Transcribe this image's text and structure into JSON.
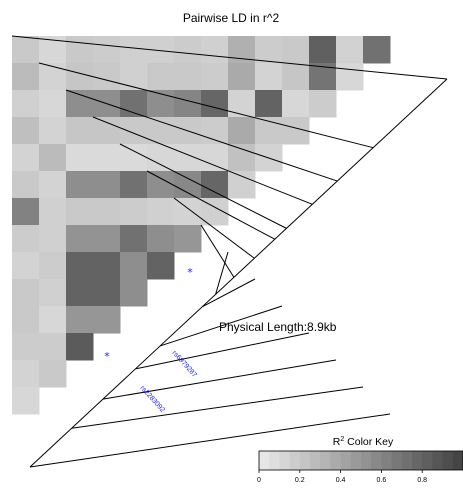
{
  "chart_data": {
    "type": "heatmap",
    "title": "Pairwise LD in r^2",
    "annotation": "Physical Length:8.9kb",
    "snp_labels": [
      "rs6979287",
      "rs2283092"
    ],
    "color_key": {
      "title_prefix": "R",
      "title_sup": "2",
      "title_suffix": " Color Key",
      "range": [
        0,
        1
      ],
      "ticks": [
        0,
        0.2,
        0.4,
        0.6,
        0.8
      ],
      "tick_labels": [
        "0",
        "0.2",
        "0.4",
        "0.6",
        "0.8"
      ],
      "colormap": "grey-scale, light grey (low r^2) to dark grey (high r^2)",
      "n_bins": 20
    },
    "n_snps": 15,
    "r2_matrix_rows": [
      [
        0.2,
        0.12,
        0.2,
        0.18,
        0.16,
        0.16,
        0.18,
        0.16,
        0.35,
        0.18,
        0.2,
        0.82,
        0.15,
        0.72
      ],
      [
        0.28,
        0.14,
        0.22,
        0.2,
        0.16,
        0.2,
        0.2,
        0.18,
        0.38,
        0.14,
        0.22,
        0.7,
        0.12
      ],
      [
        0.16,
        0.12,
        0.55,
        0.55,
        0.72,
        0.55,
        0.6,
        0.78,
        0.14,
        0.8,
        0.12,
        0.18
      ],
      [
        0.26,
        0.14,
        0.22,
        0.22,
        0.2,
        0.2,
        0.2,
        0.18,
        0.38,
        0.2,
        0.2
      ],
      [
        0.14,
        0.28,
        0.1,
        0.1,
        0.1,
        0.12,
        0.12,
        0.12,
        0.25,
        0.14
      ],
      [
        0.2,
        0.14,
        0.55,
        0.55,
        0.72,
        0.55,
        0.58,
        0.78,
        0.16
      ],
      [
        0.62,
        0.16,
        0.2,
        0.2,
        0.18,
        0.16,
        0.14,
        0.16
      ],
      [
        0.18,
        0.16,
        0.52,
        0.52,
        0.72,
        0.55,
        0.5
      ],
      [
        0.14,
        0.18,
        0.8,
        0.8,
        0.55,
        0.8
      ],
      [
        0.2,
        0.16,
        0.8,
        0.8,
        0.55
      ],
      [
        0.2,
        0.12,
        0.5,
        0.5
      ],
      [
        0.18,
        0.18,
        0.85
      ],
      [
        0.14,
        0.2
      ],
      [
        0.12
      ]
    ],
    "snp_relative_positions": [
      0.0,
      0.1,
      0.175,
      0.253,
      0.312,
      0.413,
      0.445,
      0.489,
      0.538,
      0.587,
      0.615,
      0.677,
      0.737,
      0.823,
      1.0
    ],
    "marked_pairs": [
      [
        2,
        9
      ],
      [
        2,
        13
      ]
    ]
  }
}
